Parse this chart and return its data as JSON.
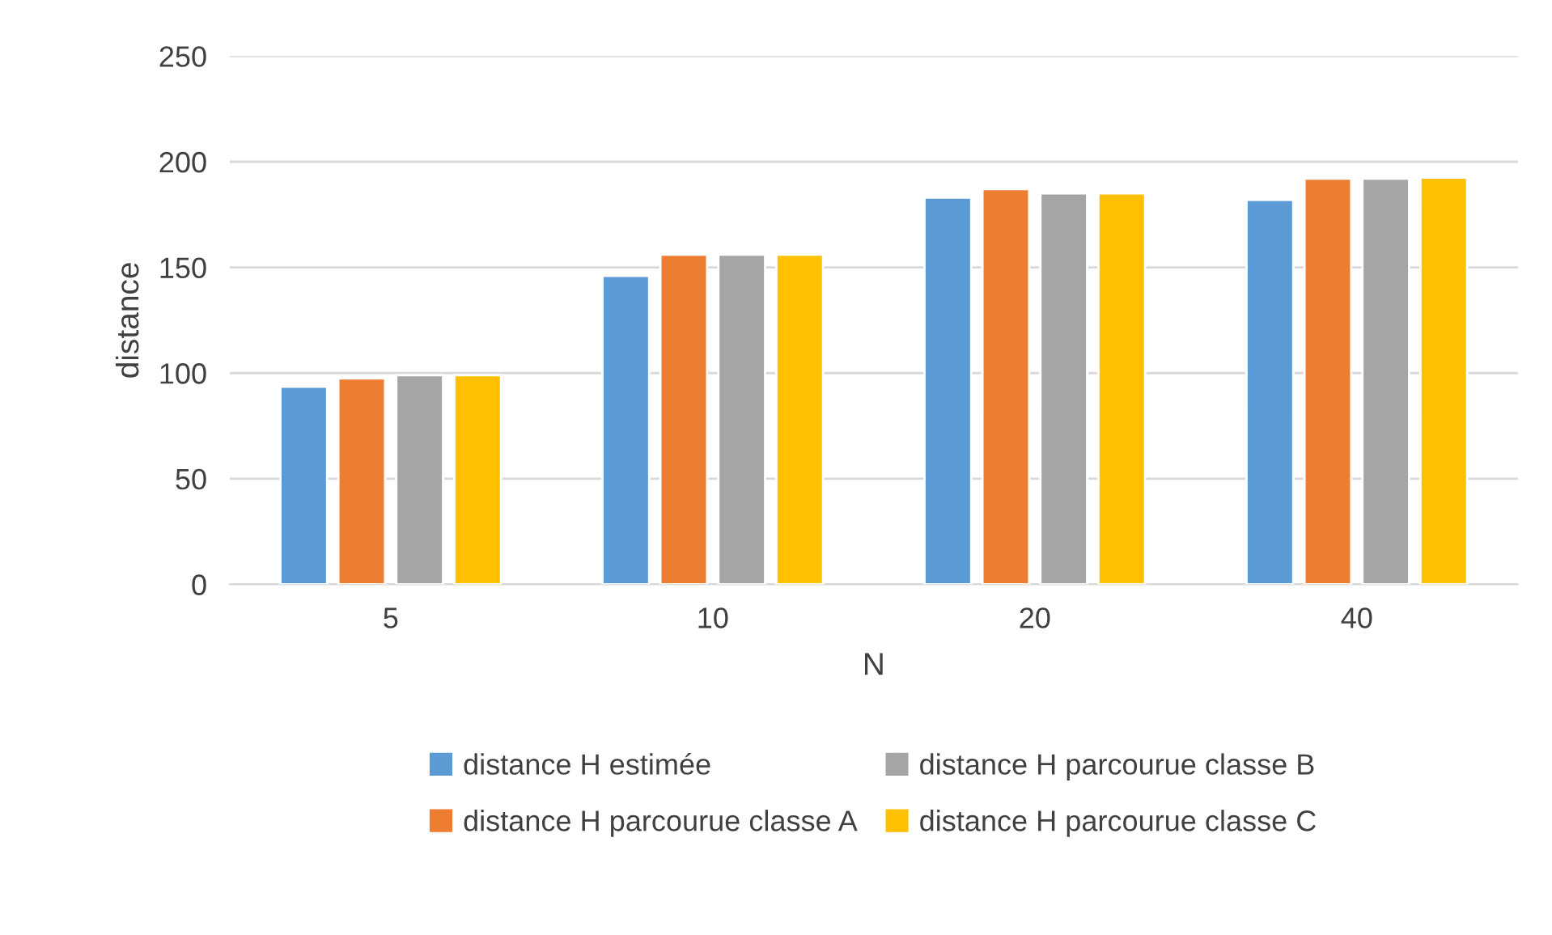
{
  "chart_data": {
    "type": "bar",
    "xlabel": "N",
    "ylabel": "distance",
    "categories": [
      "5",
      "10",
      "20",
      "40"
    ],
    "series": [
      {
        "name": "distance H estimée",
        "color": "#5b9bd5",
        "values": [
          93.5,
          146,
          183,
          182
        ]
      },
      {
        "name": "distance H parcourue classe A",
        "color": "#ed7d31",
        "values": [
          97.5,
          156,
          187,
          192
        ]
      },
      {
        "name": "distance H parcourue classe B",
        "color": "#a5a5a5",
        "values": [
          99,
          156,
          185,
          192
        ]
      },
      {
        "name": "distance H parcourue classe C",
        "color": "#ffc000",
        "values": [
          99,
          156,
          185,
          192.5
        ]
      }
    ],
    "ylim": [
      0,
      250
    ],
    "yticks": [
      0,
      50,
      100,
      150,
      200,
      250
    ],
    "grid": "y",
    "legend": "bottom"
  }
}
